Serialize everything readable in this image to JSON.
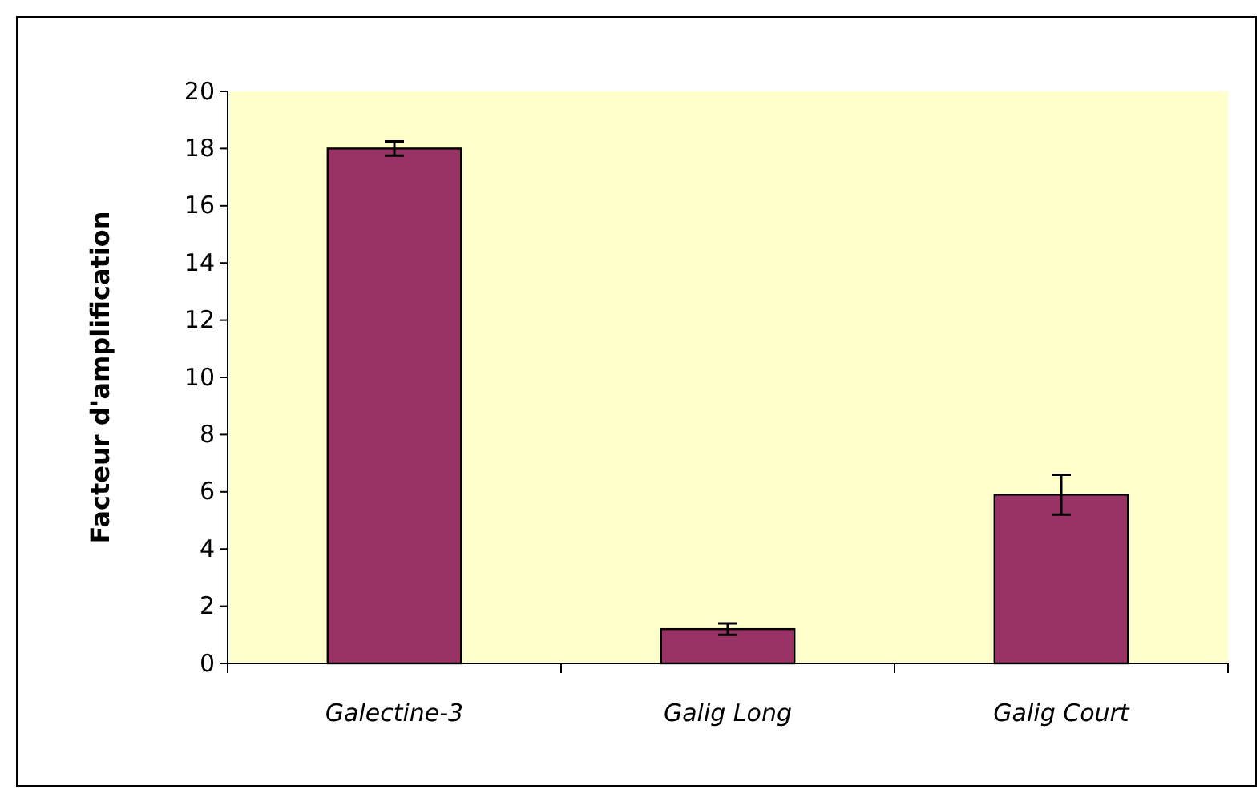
{
  "chart_data": {
    "type": "bar",
    "ylabel": "Facteur d'amplification",
    "categories": [
      "Galectine-3",
      "Galig Long",
      "Galig Court"
    ],
    "values": [
      18,
      1.2,
      5.9
    ],
    "errors": [
      0.25,
      0.2,
      0.7
    ],
    "color": "#993366",
    "ylim": [
      0,
      20
    ],
    "yticks": [
      0,
      2,
      4,
      6,
      8,
      10,
      12,
      14,
      16,
      18,
      20
    ],
    "grid": false
  }
}
